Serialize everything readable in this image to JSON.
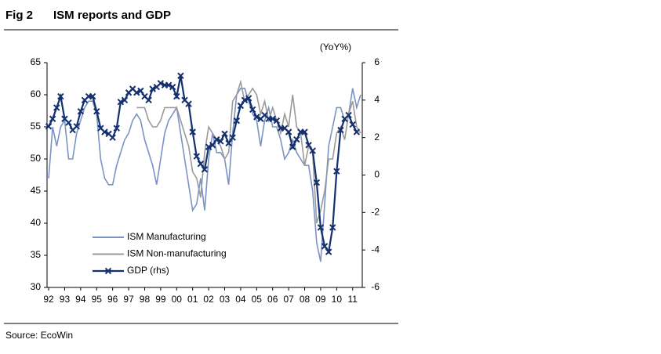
{
  "chart_data": {
    "type": "line",
    "figure_label": "Fig 2",
    "title": "ISM reports and GDP",
    "y2_label": "(YoY%)",
    "source": "Source: EcoWin",
    "xlim": [
      1991.9,
      2011.6
    ],
    "xticks": [
      {
        "value": 1992,
        "label": "92"
      },
      {
        "value": 1993,
        "label": "93"
      },
      {
        "value": 1994,
        "label": "94"
      },
      {
        "value": 1995,
        "label": "95"
      },
      {
        "value": 1996,
        "label": "96"
      },
      {
        "value": 1997,
        "label": "97"
      },
      {
        "value": 1998,
        "label": "98"
      },
      {
        "value": 1999,
        "label": "99"
      },
      {
        "value": 2000,
        "label": "00"
      },
      {
        "value": 2001,
        "label": "01"
      },
      {
        "value": 2002,
        "label": "02"
      },
      {
        "value": 2003,
        "label": "03"
      },
      {
        "value": 2004,
        "label": "04"
      },
      {
        "value": 2005,
        "label": "05"
      },
      {
        "value": 2006,
        "label": "06"
      },
      {
        "value": 2007,
        "label": "07"
      },
      {
        "value": 2008,
        "label": "08"
      },
      {
        "value": 2009,
        "label": "09"
      },
      {
        "value": 2010,
        "label": "10"
      },
      {
        "value": 2011,
        "label": "11"
      }
    ],
    "ylim": [
      30,
      65
    ],
    "yticks": [
      30,
      35,
      40,
      45,
      50,
      55,
      60,
      65
    ],
    "y2lim": [
      -6,
      6
    ],
    "y2ticks": [
      -6,
      -4,
      -2,
      0,
      2,
      4,
      6
    ],
    "grid": false,
    "series": [
      {
        "name": "ISM Manufacturing",
        "color": "#7b93c4",
        "marker": "none",
        "x": [
          1992,
          1992.25,
          1992.5,
          1992.75,
          1993,
          1993.25,
          1993.5,
          1993.75,
          1994,
          1994.25,
          1994.5,
          1994.75,
          1995,
          1995.25,
          1995.5,
          1995.75,
          1996,
          1996.25,
          1996.5,
          1996.75,
          1997,
          1997.25,
          1997.5,
          1997.75,
          1998,
          1998.25,
          1998.5,
          1998.75,
          1999,
          1999.25,
          1999.5,
          1999.75,
          2000,
          2000.25,
          2000.5,
          2000.75,
          2001,
          2001.25,
          2001.5,
          2001.75,
          2002,
          2002.25,
          2002.5,
          2002.75,
          2003,
          2003.25,
          2003.5,
          2003.75,
          2004,
          2004.25,
          2004.5,
          2004.75,
          2005,
          2005.25,
          2005.5,
          2005.75,
          2006,
          2006.25,
          2006.5,
          2006.75,
          2007,
          2007.25,
          2007.5,
          2007.75,
          2008,
          2008.25,
          2008.5,
          2008.75,
          2009,
          2009.25,
          2009.5,
          2009.75,
          2010,
          2010.25,
          2010.5,
          2010.75,
          2011,
          2011.25,
          2011.5
        ],
        "values": [
          47,
          55,
          52,
          55,
          56,
          50,
          50,
          54,
          56,
          58,
          59,
          59,
          57,
          50,
          47,
          46,
          46,
          49,
          51,
          53,
          54,
          56,
          57,
          56,
          53,
          51,
          49,
          46,
          50,
          54,
          56,
          57,
          58,
          54,
          50,
          46,
          42,
          43,
          47,
          42,
          50,
          54,
          51,
          51,
          50,
          46,
          54,
          60,
          61,
          61,
          59,
          57,
          56,
          52,
          56,
          58,
          55,
          55,
          53,
          50,
          51,
          53,
          51,
          50,
          49,
          49,
          45,
          37,
          34,
          43,
          52,
          55,
          58,
          58,
          56,
          57,
          61,
          58,
          60
        ]
      },
      {
        "name": "ISM Non-manufacturing",
        "color": "#9a9a9a",
        "marker": "none",
        "x": [
          1997.5,
          1997.75,
          1998,
          1998.25,
          1998.5,
          1998.75,
          1999,
          1999.25,
          1999.5,
          1999.75,
          2000,
          2000.25,
          2000.5,
          2000.75,
          2001,
          2001.25,
          2001.5,
          2001.75,
          2002,
          2002.25,
          2002.5,
          2002.75,
          2003,
          2003.25,
          2003.5,
          2003.75,
          2004,
          2004.25,
          2004.5,
          2004.75,
          2005,
          2005.25,
          2005.5,
          2005.75,
          2006,
          2006.25,
          2006.5,
          2006.75,
          2007,
          2007.25,
          2007.5,
          2007.75,
          2008,
          2008.25,
          2008.5,
          2008.75,
          2009,
          2009.25,
          2009.5,
          2009.75,
          2010,
          2010.25,
          2010.5,
          2010.75,
          2011,
          2011.25,
          2011.5
        ],
        "values": [
          58,
          58,
          58,
          56,
          55,
          55,
          56,
          58,
          58,
          58,
          58,
          56,
          54,
          52,
          48,
          47,
          44,
          51,
          55,
          54,
          53,
          52,
          50,
          51,
          59,
          60,
          62,
          59,
          60,
          61,
          60,
          57,
          59,
          56,
          58,
          56,
          54,
          57,
          55,
          60,
          55,
          54,
          49,
          52,
          51,
          40,
          42,
          45,
          50,
          50,
          54,
          55,
          53,
          57,
          59,
          55,
          54
        ]
      },
      {
        "name": "GDP (rhs)",
        "color": "#14306e",
        "marker": "x",
        "axis": "y2",
        "x": [
          1992,
          1992.25,
          1992.5,
          1992.75,
          1993,
          1993.25,
          1993.5,
          1993.75,
          1994,
          1994.25,
          1994.5,
          1994.75,
          1995,
          1995.25,
          1995.5,
          1995.75,
          1996,
          1996.25,
          1996.5,
          1996.75,
          1997,
          1997.25,
          1997.5,
          1997.75,
          1998,
          1998.25,
          1998.5,
          1998.75,
          1999,
          1999.25,
          1999.5,
          1999.75,
          2000,
          2000.25,
          2000.5,
          2000.75,
          2001,
          2001.25,
          2001.5,
          2001.75,
          2002,
          2002.25,
          2002.5,
          2002.75,
          2003,
          2003.25,
          2003.5,
          2003.75,
          2004,
          2004.25,
          2004.5,
          2004.75,
          2005,
          2005.25,
          2005.5,
          2005.75,
          2006,
          2006.25,
          2006.5,
          2006.75,
          2007,
          2007.25,
          2007.5,
          2007.75,
          2008,
          2008.25,
          2008.5,
          2008.75,
          2009,
          2009.25,
          2009.5,
          2009.75,
          2010,
          2010.25,
          2010.5,
          2010.75,
          2011,
          2011.25
        ],
        "values": [
          2.6,
          3.0,
          3.6,
          4.2,
          3.0,
          2.8,
          2.4,
          2.6,
          3.4,
          4.0,
          4.2,
          4.2,
          3.4,
          2.5,
          2.3,
          2.2,
          2.0,
          2.5,
          3.9,
          4.0,
          4.4,
          4.6,
          4.4,
          4.5,
          4.2,
          4.0,
          4.6,
          4.7,
          4.9,
          4.8,
          4.8,
          4.7,
          4.2,
          5.3,
          4.0,
          3.8,
          2.3,
          1.0,
          0.6,
          0.3,
          1.5,
          1.6,
          1.9,
          1.8,
          2.2,
          1.7,
          2.0,
          2.9,
          3.7,
          4.0,
          4.1,
          3.5,
          3.1,
          3.0,
          3.2,
          3.0,
          3.0,
          2.9,
          2.5,
          2.5,
          2.3,
          1.5,
          1.9,
          2.3,
          2.3,
          1.6,
          1.3,
          -0.4,
          -2.8,
          -3.8,
          -4.1,
          -2.8,
          0.2,
          2.4,
          3.0,
          3.2,
          2.7,
          2.3
        ]
      }
    ]
  }
}
